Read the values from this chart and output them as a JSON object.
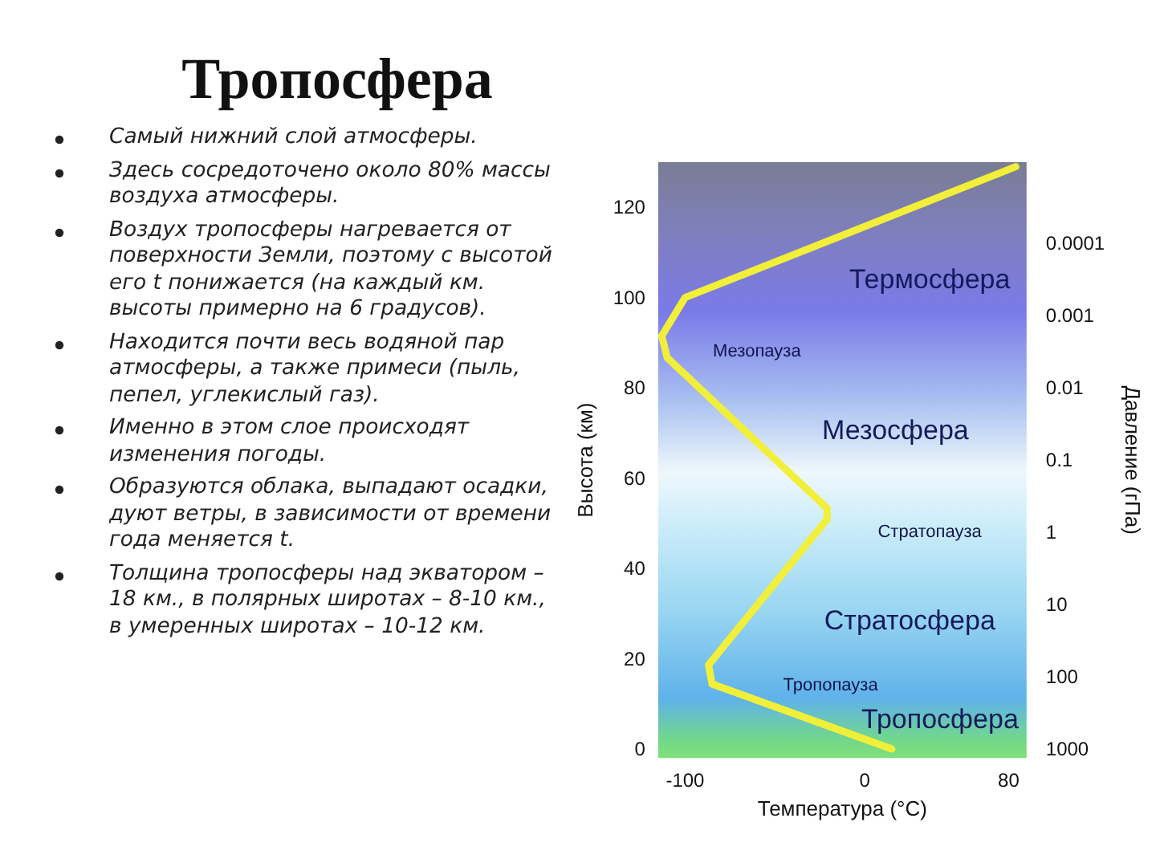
{
  "chart_data": {
    "type": "line",
    "title": "Тропосфера",
    "xlabel": "Температура (°C)",
    "ylabel": "Высота (км)",
    "y2label": "Давление (гПа)",
    "x": [
      15,
      -85,
      -87,
      -21,
      -21,
      -110,
      -113,
      -100,
      84
    ],
    "values": [
      0,
      14.4,
      18.6,
      50.9,
      53.3,
      86.7,
      91.5,
      100,
      129
    ],
    "color": "#f2ef3a",
    "marker": "none",
    "line_style": "solid",
    "grid": false,
    "xlim": [
      -115,
      90
    ],
    "xticks": [
      -100,
      0,
      80
    ],
    "ylim": [
      -2,
      130
    ],
    "yticks": [
      0,
      20,
      40,
      60,
      80,
      100,
      120
    ],
    "log": "y2",
    "y2lim": [
      1330,
      7.5e-06
    ],
    "y2ticks": [
      1000,
      100,
      10,
      1,
      0.1,
      0.01,
      0.001,
      0.0001
    ],
    "annotations": [
      "Самый нижний слой атмосферы.",
      "Здесь сосредоточено около 80% массы воздуха атмосферы.",
      "Воздух тропосферы нагревается от поверхности Земли, поэтому с высотой его t понижается (на каждый км. высоты примерно на 6 градусов).",
      "Находится почти весь водяной пар атмосферы, а также примеси (пыль, пепел, углекислый газ).",
      "Именно в этом слое происходят изменения погоды.",
      "Образуются облака, выпадают осадки, дуют ветры, в зависимости от времени года меняется t.",
      "Толщина тропосферы над экватором – 18 км., в полярных широтах – 8-10 км., в умеренных широтах – 10-12 км.",
      "Термосфера",
      "Мезопауза",
      "Мезосфера",
      "Стратопауза",
      "Стратосфера",
      "Тропопауза",
      "Тропосфера"
    ]
  }
}
